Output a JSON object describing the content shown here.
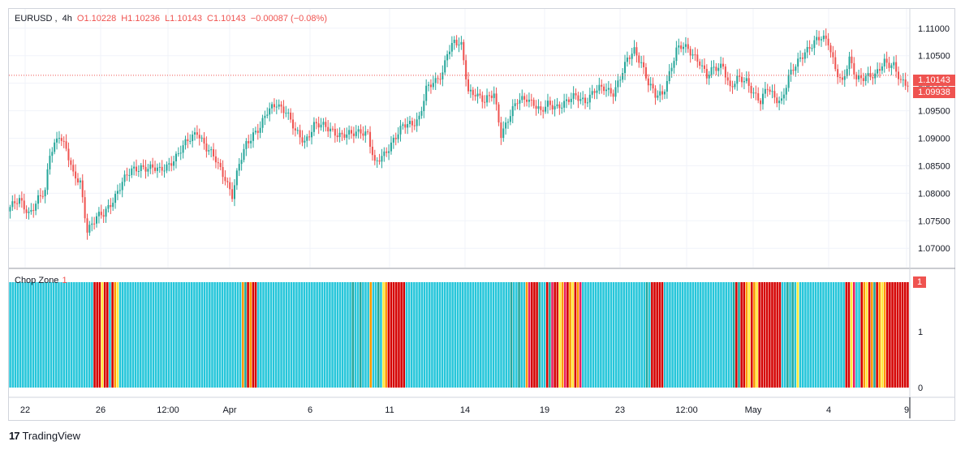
{
  "legend": {
    "symbol": "EURUSD",
    "interval": "4h",
    "open": "O1.10228",
    "high": "H1.10236",
    "low": "L1.10143",
    "close": "C1.10143",
    "change": "−0.00087 (−0.08%)"
  },
  "last_price_label": "1.10143",
  "second_price_label": "1.09938",
  "chop_indicator": {
    "name": "Chop Zone",
    "value": "1",
    "badge": "1"
  },
  "footer": {
    "brand": "TradingView"
  },
  "colors": {
    "up": "#26a69a",
    "down": "#ef5350",
    "grid": "#f0f3fa",
    "chop_turquoise": "#26c6da",
    "chop_red": "#d50000",
    "chop_orange": "#ff9800",
    "chop_yellow": "#ffeb3b",
    "chop_dark_green": "#26a69a",
    "chop_pink": "#e91e63"
  },
  "chart_data": [
    {
      "type": "candlestick",
      "title": "EURUSD, 4h",
      "y_ticks": [
        "1.11000",
        "1.10500",
        "1.10000",
        "1.09500",
        "1.09000",
        "1.08500",
        "1.08000",
        "1.07500",
        "1.07000"
      ],
      "x_ticks": [
        "22",
        "26",
        "12:00",
        "Apr",
        "6",
        "11",
        "14",
        "19",
        "23",
        "12:00",
        "May",
        "4",
        "9"
      ],
      "ylim": [
        1.0665,
        1.1135
      ],
      "last_close": 1.10143,
      "anchors": [
        [
          0,
          1.0775
        ],
        [
          4,
          1.0785
        ],
        [
          8,
          1.0765
        ],
        [
          12,
          1.079
        ],
        [
          15,
          1.08
        ],
        [
          17,
          1.087
        ],
        [
          21,
          1.091
        ],
        [
          24,
          1.088
        ],
        [
          27,
          1.083
        ],
        [
          30,
          1.082
        ],
        [
          33,
          1.0735
        ],
        [
          37,
          1.0755
        ],
        [
          40,
          1.076
        ],
        [
          44,
          1.079
        ],
        [
          48,
          1.082
        ],
        [
          52,
          1.084
        ],
        [
          56,
          1.085
        ],
        [
          60,
          1.0845
        ],
        [
          64,
          1.084
        ],
        [
          68,
          1.0855
        ],
        [
          72,
          1.087
        ],
        [
          76,
          1.0895
        ],
        [
          80,
          1.0915
        ],
        [
          84,
          1.088
        ],
        [
          88,
          1.086
        ],
        [
          92,
          1.083
        ],
        [
          95,
          1.0795
        ],
        [
          98,
          1.085
        ],
        [
          101,
          1.089
        ],
        [
          104,
          1.091
        ],
        [
          107,
          1.092
        ],
        [
          110,
          1.0945
        ],
        [
          114,
          1.0965
        ],
        [
          118,
          1.095
        ],
        [
          122,
          1.091
        ],
        [
          126,
          1.0895
        ],
        [
          130,
          1.0925
        ],
        [
          134,
          1.092
        ],
        [
          138,
          1.0915
        ],
        [
          142,
          1.0905
        ],
        [
          146,
          1.0905
        ],
        [
          150,
          1.0915
        ],
        [
          153,
          1.091
        ],
        [
          156,
          1.085
        ],
        [
          160,
          1.087
        ],
        [
          164,
          1.09
        ],
        [
          168,
          1.092
        ],
        [
          172,
          1.0925
        ],
        [
          175,
          1.094
        ],
        [
          178,
          1.099
        ],
        [
          182,
          1.1
        ],
        [
          185,
          1.102
        ],
        [
          187,
          1.106
        ],
        [
          190,
          1.1075
        ],
        [
          193,
          1.1065
        ],
        [
          196,
          1.0985
        ],
        [
          199,
          1.0985
        ],
        [
          203,
          1.0965
        ],
        [
          207,
          1.098
        ],
        [
          210,
          1.091
        ],
        [
          213,
          1.0935
        ],
        [
          217,
          1.0965
        ],
        [
          221,
          1.0975
        ],
        [
          224,
          1.0965
        ],
        [
          227,
          1.0945
        ],
        [
          230,
          1.096
        ],
        [
          234,
          1.096
        ],
        [
          238,
          1.0965
        ],
        [
          242,
          1.0975
        ],
        [
          246,
          1.097
        ],
        [
          250,
          1.0985
        ],
        [
          254,
          1.099
        ],
        [
          258,
          1.0985
        ],
        [
          261,
          1.101
        ],
        [
          264,
          1.104
        ],
        [
          267,
          1.106
        ],
        [
          270,
          1.104
        ],
        [
          273,
          1.1
        ],
        [
          276,
          1.0975
        ],
        [
          279,
          1.098
        ],
        [
          282,
          1.102
        ],
        [
          285,
          1.106
        ],
        [
          288,
          1.1065
        ],
        [
          292,
          1.1055
        ],
        [
          295,
          1.104
        ],
        [
          298,
          1.101
        ],
        [
          301,
          1.1025
        ],
        [
          305,
          1.1035
        ],
        [
          308,
          1.099
        ],
        [
          311,
          1.1005
        ],
        [
          315,
          1.1005
        ],
        [
          318,
          1.0985
        ],
        [
          321,
          1.0965
        ],
        [
          324,
          1.099
        ],
        [
          327,
          1.0975
        ],
        [
          330,
          1.097
        ],
        [
          333,
          1.101
        ],
        [
          336,
          1.103
        ],
        [
          340,
          1.106
        ],
        [
          344,
          1.1075
        ],
        [
          347,
          1.108
        ],
        [
          350,
          1.1075
        ],
        [
          353,
          1.103
        ],
        [
          356,
          1.1
        ],
        [
          359,
          1.104
        ],
        [
          362,
          1.101
        ],
        [
          366,
          1.1015
        ],
        [
          370,
          1.101
        ],
        [
          374,
          1.104
        ],
        [
          378,
          1.1035
        ],
        [
          381,
          1.1
        ],
        [
          384,
          1.0994
        ]
      ],
      "candle_count": 385
    },
    {
      "type": "bar",
      "title": "Chop Zone",
      "y_ticks": [
        "1",
        "0"
      ],
      "ylim": [
        0,
        1
      ],
      "palette": [
        "#26c6da",
        "#d50000",
        "#ff9800",
        "#ffeb3b",
        "#26a69a",
        "#e91e63"
      ],
      "segments": [
        [
          33,
          0
        ],
        [
          3,
          1
        ],
        [
          1,
          3
        ],
        [
          2,
          1
        ],
        [
          1,
          0
        ],
        [
          1,
          1
        ],
        [
          1,
          2
        ],
        [
          1,
          3
        ],
        [
          48,
          0
        ],
        [
          1,
          2
        ],
        [
          1,
          4
        ],
        [
          1,
          1
        ],
        [
          1,
          2
        ],
        [
          2,
          1
        ],
        [
          37,
          0
        ],
        [
          1,
          4
        ],
        [
          2,
          0
        ],
        [
          1,
          4
        ],
        [
          3,
          0
        ],
        [
          1,
          2
        ],
        [
          2,
          0
        ],
        [
          1,
          4
        ],
        [
          1,
          0
        ],
        [
          1,
          3
        ],
        [
          1,
          2
        ],
        [
          7,
          1
        ],
        [
          41,
          0
        ],
        [
          1,
          4
        ],
        [
          2,
          0
        ],
        [
          1,
          4
        ],
        [
          2,
          0
        ],
        [
          1,
          2
        ],
        [
          1,
          5
        ],
        [
          3,
          1
        ],
        [
          1,
          4
        ],
        [
          2,
          0
        ],
        [
          1,
          1
        ],
        [
          1,
          4
        ],
        [
          1,
          5
        ],
        [
          2,
          1
        ],
        [
          1,
          3
        ],
        [
          1,
          2
        ],
        [
          1,
          5
        ],
        [
          1,
          1
        ],
        [
          1,
          2
        ],
        [
          1,
          3
        ],
        [
          1,
          1
        ],
        [
          1,
          2
        ],
        [
          1,
          5
        ],
        [
          25,
          0
        ],
        [
          1,
          4
        ],
        [
          1,
          0
        ],
        [
          5,
          1
        ],
        [
          27,
          0
        ],
        [
          1,
          4
        ],
        [
          1,
          1
        ],
        [
          1,
          4
        ],
        [
          2,
          1
        ],
        [
          1,
          2
        ],
        [
          1,
          3
        ],
        [
          1,
          1
        ],
        [
          1,
          2
        ],
        [
          1,
          3
        ],
        [
          9,
          1
        ],
        [
          2,
          0
        ],
        [
          1,
          4
        ],
        [
          1,
          0
        ],
        [
          1,
          4
        ],
        [
          1,
          0
        ],
        [
          1,
          3
        ],
        [
          18,
          0
        ],
        [
          2,
          1
        ],
        [
          1,
          3
        ],
        [
          1,
          5
        ],
        [
          2,
          0
        ],
        [
          1,
          1
        ],
        [
          1,
          2
        ],
        [
          1,
          3
        ],
        [
          1,
          1
        ],
        [
          1,
          2
        ],
        [
          1,
          4
        ],
        [
          1,
          1
        ],
        [
          1,
          2
        ],
        [
          1,
          3
        ],
        [
          1,
          2
        ],
        [
          1,
          1
        ],
        [
          8,
          1
        ]
      ]
    }
  ]
}
